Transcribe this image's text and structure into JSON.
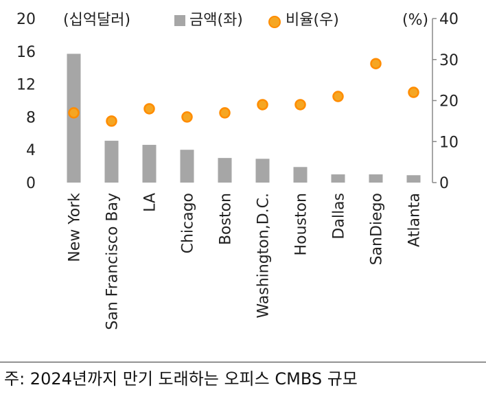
{
  "chart_data": {
    "type": "bar",
    "categories": [
      "New York",
      "San Francisco Bay",
      "LA",
      "Chicago",
      "Boston",
      "Washington,D.C.",
      "Houston",
      "Dallas",
      "SanDiego",
      "Atlanta"
    ],
    "series": [
      {
        "name": "금액(좌)",
        "type": "bar",
        "axis": "left",
        "color": "#a6a6a6",
        "values": [
          15.7,
          5.1,
          4.6,
          4.0,
          3.0,
          2.9,
          1.9,
          1.0,
          1.0,
          0.9
        ]
      },
      {
        "name": "비율(우)",
        "type": "scatter",
        "axis": "right",
        "color": "#f5a623",
        "values": [
          17,
          15,
          18,
          16,
          17,
          19,
          19,
          21,
          29,
          22
        ]
      }
    ],
    "y_left": {
      "unit": "(십억달러)",
      "ylim": [
        0,
        20
      ],
      "ticks": [
        "0",
        "4",
        "8",
        "12",
        "16",
        "20"
      ]
    },
    "y_right": {
      "unit": "(%)",
      "ylim": [
        0,
        40
      ],
      "ticks": [
        "0",
        "10",
        "20",
        "30",
        "40"
      ]
    },
    "grid": false,
    "legend_position": "top"
  },
  "footnote": "주: 2024년까지 만기 도래하는 오피스 CMBS 규모"
}
